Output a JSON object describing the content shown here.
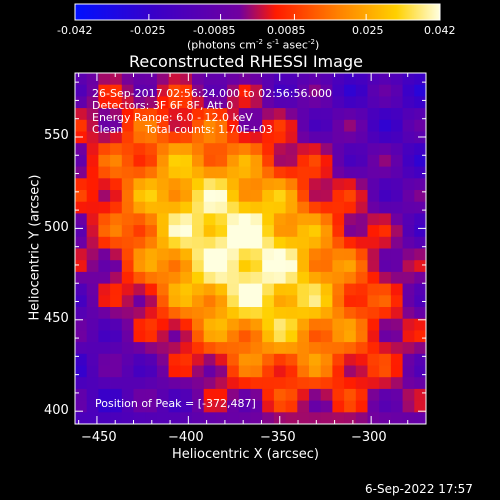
{
  "colorbar": {
    "ticks": [
      "-0.042",
      "-0.025",
      "-0.0085",
      "0.0085",
      "0.025",
      "0.042"
    ],
    "units_main": "(photons cm",
    "units_exp1": "-2",
    "units_mid": " s",
    "units_exp2": "-1",
    "units_tail": " asec",
    "units_exp3": "-2",
    "units_close": ")",
    "colormap": [
      "#0010ff",
      "#3a00c8",
      "#7000a0",
      "#ff1a00",
      "#ff8000",
      "#ffd000",
      "#ffffe0"
    ]
  },
  "title": "Reconstructed RHESSI Image",
  "annotations": {
    "time_range": "26-Sep-2017 02:56:24.000 to 02:56:56.000",
    "detectors": "Detectors: 3F 6F 8F, Att 0",
    "energy": "Energy Range: 6.0 - 12.0 keV",
    "method": "Clean",
    "counts": "Total counts: 1.70E+03",
    "peak": "Position of Peak = [-372,487]"
  },
  "footer": {
    "timestamp": "6-Sep-2022 17:57"
  },
  "chart_data": {
    "type": "heatmap",
    "title": "Reconstructed RHESSI Image",
    "xlabel": "Heliocentric X (arcsec)",
    "ylabel": "Heliocentric Y (arcsec)",
    "xlim": [
      -462,
      -270
    ],
    "ylim": [
      393,
      585
    ],
    "x_ticks": [
      -450,
      -400,
      -350,
      -300
    ],
    "y_ticks": [
      400,
      450,
      500,
      550
    ],
    "x_tick_labels": [
      "−450",
      "−400",
      "−350",
      "−300"
    ],
    "y_tick_labels": [
      "400",
      "450",
      "500",
      "550"
    ],
    "peak_position": [
      -372,
      487
    ],
    "value_range": [
      -0.042,
      0.042
    ],
    "grid": false
  }
}
